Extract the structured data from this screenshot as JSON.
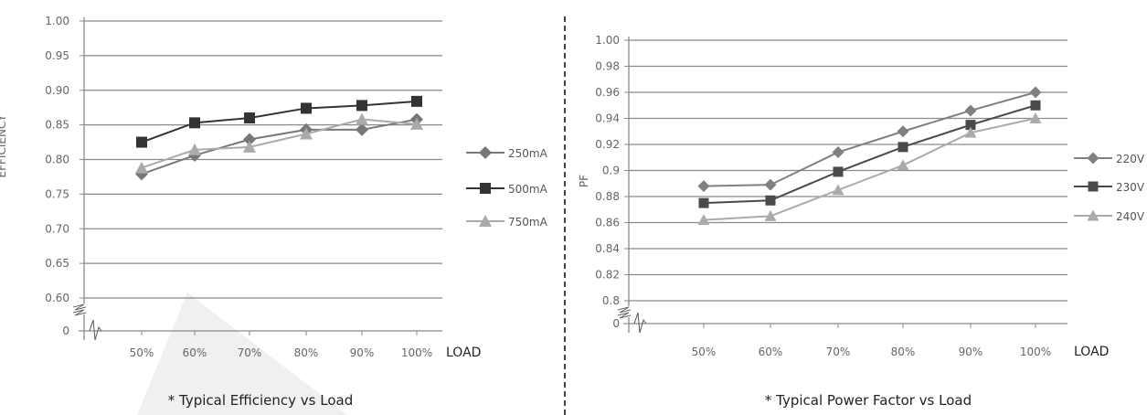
{
  "chart_data": [
    {
      "type": "line",
      "title": "* Typical Efficiency vs Load",
      "xlabel": "LOAD",
      "ylabel": "EFFICIENCY",
      "categories": [
        "50%",
        "60%",
        "70%",
        "80%",
        "90%",
        "100%"
      ],
      "yticks": [
        "1.00",
        "0.95",
        "0.90",
        "0.85",
        "0.80",
        "0.75",
        "0.70",
        "0.65",
        "0.60"
      ],
      "ybreak_label": "0",
      "ylim": [
        0.6,
        1.0
      ],
      "grid": true,
      "legend": "right",
      "series": [
        {
          "name": "250mA",
          "marker": "diamond",
          "color": "#777777",
          "values": [
            0.779,
            0.806,
            0.829,
            0.843,
            0.843,
            0.858
          ]
        },
        {
          "name": "500mA",
          "marker": "square",
          "color": "#333333",
          "values": [
            0.825,
            0.853,
            0.86,
            0.874,
            0.878,
            0.884
          ]
        },
        {
          "name": "750mA",
          "marker": "triangle",
          "color": "#aaaaaa",
          "values": [
            0.788,
            0.814,
            0.818,
            0.837,
            0.858,
            0.851
          ]
        }
      ]
    },
    {
      "type": "line",
      "title": "* Typical Power Factor vs Load",
      "xlabel": "LOAD",
      "ylabel": "PF",
      "categories": [
        "50%",
        "60%",
        "70%",
        "80%",
        "90%",
        "100%"
      ],
      "yticks": [
        "1.00",
        "0.98",
        "0.96",
        "0.94",
        "0.92",
        "0.9",
        "0.88",
        "0.86",
        "0.84",
        "0.82",
        "0.8"
      ],
      "ybreak_label": "0",
      "ylim": [
        0.8,
        1.0
      ],
      "grid": true,
      "legend": "right",
      "series": [
        {
          "name": "220V",
          "marker": "diamond",
          "color": "#808080",
          "values": [
            0.888,
            0.889,
            0.914,
            0.93,
            0.946,
            0.96
          ]
        },
        {
          "name": "230V",
          "marker": "square",
          "color": "#4a4a4a",
          "values": [
            0.875,
            0.877,
            0.899,
            0.918,
            0.935,
            0.95
          ]
        },
        {
          "name": "240V",
          "marker": "triangle",
          "color": "#aaaaaa",
          "values": [
            0.862,
            0.865,
            0.885,
            0.904,
            0.929,
            0.94
          ]
        }
      ]
    }
  ]
}
